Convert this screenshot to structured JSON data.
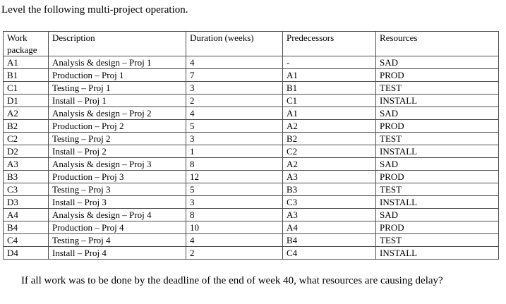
{
  "title": "Level the following multi-project operation.",
  "table": {
    "headers": [
      "Work package",
      "Description",
      "Duration (weeks)",
      "Predecessors",
      "Resources"
    ],
    "rows": [
      [
        "A1",
        "Analysis & design – Proj 1",
        "4",
        "-",
        "SAD"
      ],
      [
        "B1",
        "Production – Proj 1",
        "7",
        "A1",
        "PROD"
      ],
      [
        "C1",
        "Testing – Proj 1",
        "3",
        "B1",
        "TEST"
      ],
      [
        "D1",
        "Install – Proj 1",
        "2",
        "C1",
        "INSTALL"
      ],
      [
        "A2",
        "Analysis & design – Proj 2",
        "4",
        "A1",
        "SAD"
      ],
      [
        "B2",
        "Production – Proj 2",
        "5",
        "A2",
        "PROD"
      ],
      [
        "C2",
        "Testing – Proj 2",
        "3",
        "B2",
        "TEST"
      ],
      [
        "D2",
        "Install – Proj 2",
        "1",
        "C2",
        "INSTALL"
      ],
      [
        "A3",
        "Analysis & design – Proj 3",
        "8",
        "A2",
        "SAD"
      ],
      [
        "B3",
        "Production – Proj 3",
        "12",
        "A3",
        "PROD"
      ],
      [
        "C3",
        "Testing – Proj 3",
        "5",
        "B3",
        "TEST"
      ],
      [
        "D3",
        "Install – Proj 3",
        "3",
        "C3",
        "INSTALL"
      ],
      [
        "A4",
        "Analysis & design – Proj 4",
        "8",
        "A3",
        "SAD"
      ],
      [
        "B4",
        "Production – Proj 4",
        "10",
        "A4",
        "PROD"
      ],
      [
        "C4",
        "Testing – Proj 4",
        "4",
        "B4",
        "TEST"
      ],
      [
        "D4",
        "Install – Proj 4",
        "2",
        "C4",
        "INSTALL"
      ]
    ]
  },
  "question": "If all work was to be done by the deadline of the end of week 40, what resources are causing delay?"
}
